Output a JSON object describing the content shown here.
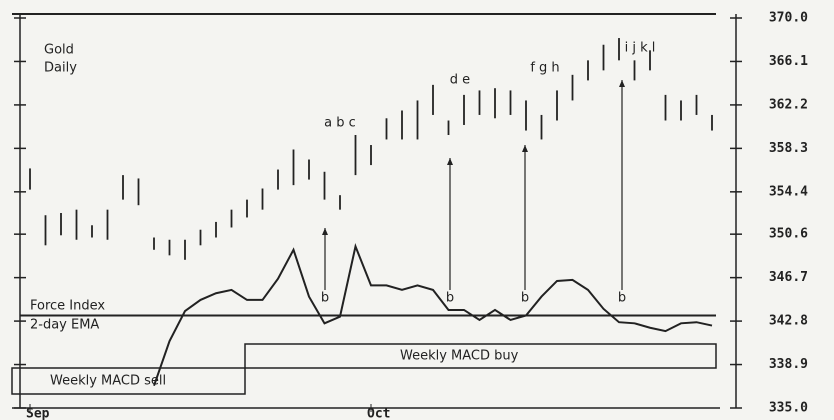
{
  "chart_data": {
    "type": "hilo",
    "title_lines": [
      "Gold",
      "Daily"
    ],
    "indicator_lines": [
      "Force Index",
      "2-day EMA"
    ],
    "categories": [
      "Sep",
      null,
      null,
      null,
      null,
      null,
      null,
      null,
      null,
      null,
      null,
      null,
      null,
      null,
      null,
      null,
      null,
      null,
      null,
      null,
      null,
      null,
      "Oct",
      null,
      null,
      null,
      null,
      null,
      null,
      null,
      null,
      null,
      null,
      null,
      null,
      null,
      null,
      null,
      null,
      null,
      null,
      null,
      null,
      null,
      null
    ],
    "high": [
      356.5,
      352.3,
      352.5,
      352.8,
      351.4,
      352.8,
      355.9,
      355.6,
      350.3,
      350.1,
      350.1,
      351.0,
      351.7,
      352.8,
      353.7,
      354.7,
      356.4,
      358.2,
      357.3,
      356.2,
      354.1,
      359.5,
      358.6,
      361.0,
      361.7,
      362.6,
      364.0,
      360.8,
      363.1,
      363.5,
      363.7,
      363.5,
      362.6,
      361.3,
      363.5,
      364.9,
      366.2,
      367.6,
      368.2,
      366.2,
      367.1,
      363.1,
      362.6,
      363.1,
      361.3
    ],
    "low": [
      354.6,
      349.6,
      350.5,
      350.1,
      350.3,
      350.1,
      353.7,
      353.2,
      349.2,
      348.7,
      348.3,
      349.6,
      350.3,
      351.2,
      352.1,
      352.8,
      354.6,
      355.0,
      355.5,
      353.7,
      352.8,
      355.9,
      356.8,
      359.1,
      359.1,
      359.1,
      361.3,
      359.5,
      360.4,
      361.3,
      361.0,
      361.3,
      359.9,
      359.1,
      360.8,
      362.6,
      364.4,
      365.3,
      366.2,
      364.4,
      365.3,
      360.8,
      360.8,
      361.3,
      359.9
    ],
    "force_index": [
      null,
      null,
      null,
      null,
      null,
      null,
      null,
      null,
      337.0,
      341.0,
      343.7,
      344.7,
      345.3,
      345.6,
      344.7,
      344.7,
      346.6,
      349.2,
      345.0,
      342.6,
      343.2,
      349.5,
      346.0,
      346.0,
      345.6,
      346.0,
      345.6,
      343.8,
      343.8,
      342.9,
      343.8,
      342.9,
      343.3,
      345.0,
      346.4,
      346.5,
      345.6,
      343.9,
      342.7,
      342.6,
      342.2,
      341.9,
      342.6,
      342.7,
      342.4
    ],
    "force_baseline": 343.3,
    "macd": [
      "Weekly MACD sell",
      "Weekly MACD buy"
    ],
    "annotations": [
      "a b c",
      "d e",
      "f g h",
      "i j k l",
      "b",
      "b",
      "b",
      "b"
    ],
    "ylim": [
      335,
      370
    ],
    "yticks": [
      {
        "value": 335,
        "label": "335.0"
      },
      338.9,
      342.8,
      346.7,
      350.6,
      354.4,
      358.3,
      362.2,
      366.1,
      {
        "value": 370,
        "label": "370.0"
      }
    ],
    "color": "#222222"
  }
}
